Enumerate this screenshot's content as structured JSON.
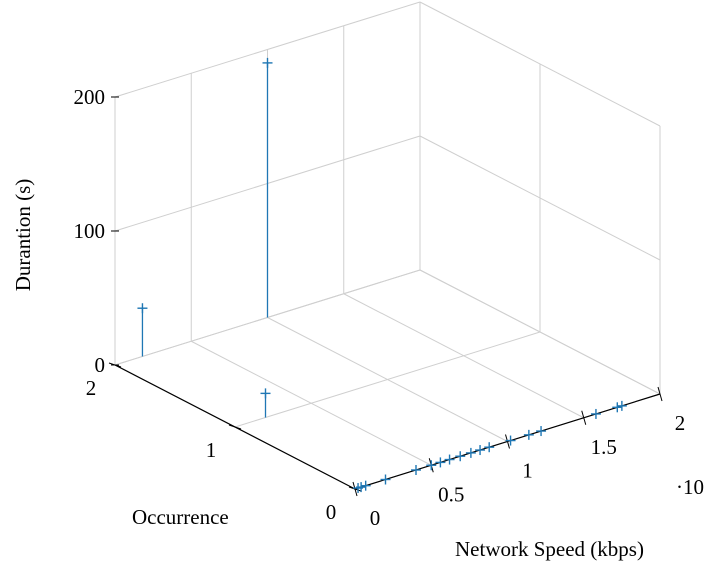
{
  "chart_data": {
    "type": "scatter",
    "title": "",
    "xlabel": "Network Speed (kbps)",
    "ylabel": "Occurrence",
    "zlabel": "Durantion (s)",
    "x_scale_label": "·10",
    "xlim": [
      0,
      2
    ],
    "ylim": [
      0,
      2
    ],
    "zlim": [
      0,
      200
    ],
    "x_ticks": [
      0,
      0.5,
      1,
      1.5,
      2
    ],
    "x_tick_labels": [
      "0",
      "0.5",
      "1",
      "1.5",
      "2"
    ],
    "y_ticks": [
      0,
      1,
      2
    ],
    "y_tick_labels": [
      "0",
      "1",
      "2"
    ],
    "z_ticks": [
      0,
      100,
      200
    ],
    "z_tick_labels": [
      "0",
      "100",
      "200"
    ],
    "grid": true,
    "color": "#1f77b4",
    "series": [
      {
        "stems": true,
        "points": [
          {
            "x": 0.02,
            "y": 0,
            "z": 0
          },
          {
            "x": 0.04,
            "y": 0,
            "z": 0
          },
          {
            "x": 0.07,
            "y": 0,
            "z": 0
          },
          {
            "x": 0.2,
            "y": 0,
            "z": 0
          },
          {
            "x": 0.4,
            "y": 0,
            "z": 0
          },
          {
            "x": 0.5,
            "y": 0,
            "z": 0
          },
          {
            "x": 0.56,
            "y": 0,
            "z": 0
          },
          {
            "x": 0.62,
            "y": 0,
            "z": 0
          },
          {
            "x": 0.69,
            "y": 0,
            "z": 0
          },
          {
            "x": 0.76,
            "y": 0,
            "z": 0
          },
          {
            "x": 0.82,
            "y": 0,
            "z": 0
          },
          {
            "x": 0.88,
            "y": 0,
            "z": 0
          },
          {
            "x": 1.02,
            "y": 0,
            "z": 0
          },
          {
            "x": 1.14,
            "y": 0,
            "z": 0
          },
          {
            "x": 1.22,
            "y": 0,
            "z": 0
          },
          {
            "x": 1.58,
            "y": 0,
            "z": 0
          },
          {
            "x": 1.72,
            "y": 0,
            "z": 0
          },
          {
            "x": 1.75,
            "y": 0,
            "z": 0
          },
          {
            "x": 0.2,
            "y": 1,
            "z": 18
          },
          {
            "x": 0.18,
            "y": 2,
            "z": 36
          },
          {
            "x": 1.0,
            "y": 2,
            "z": 190
          }
        ]
      }
    ]
  }
}
